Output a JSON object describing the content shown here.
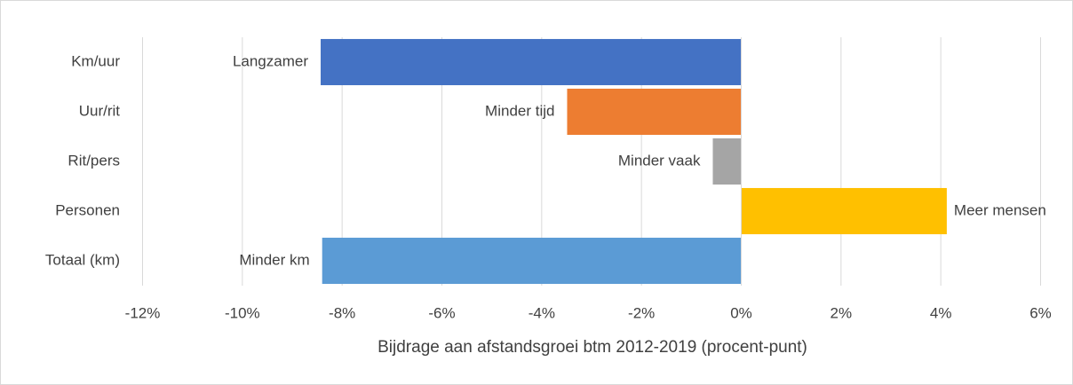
{
  "chart_data": {
    "type": "bar",
    "orientation": "horizontal",
    "x_label": "Bijdrage aan afstandsgroei btm 2012-2019 (procent-punt)",
    "categories": [
      "Km/uur",
      "Uur/rit",
      "Rit/pers",
      "Personen",
      "Totaal (km)"
    ],
    "values": [
      -8.43,
      -3.49,
      -0.57,
      4.12,
      -8.4
    ],
    "annotations": [
      "Langzamer",
      "Minder tijd",
      "Minder vaak",
      "Meer mensen",
      "Minder km"
    ],
    "colors": [
      "#4472c4",
      "#ed7d31",
      "#a5a5a5",
      "#ffc000",
      "#5b9bd5"
    ],
    "xlim": [
      -12,
      6
    ],
    "xticks": [
      {
        "value": -12,
        "label": "-12%"
      },
      {
        "value": -10,
        "label": "-10%"
      },
      {
        "value": -8,
        "label": "-8%"
      },
      {
        "value": -6,
        "label": "-6%"
      },
      {
        "value": -4,
        "label": "-4%"
      },
      {
        "value": -2,
        "label": "-2%"
      },
      {
        "value": 0,
        "label": "0%"
      },
      {
        "value": 2,
        "label": "2%"
      },
      {
        "value": 4,
        "label": "4%"
      },
      {
        "value": 6,
        "label": "6%"
      }
    ],
    "grid": true
  }
}
